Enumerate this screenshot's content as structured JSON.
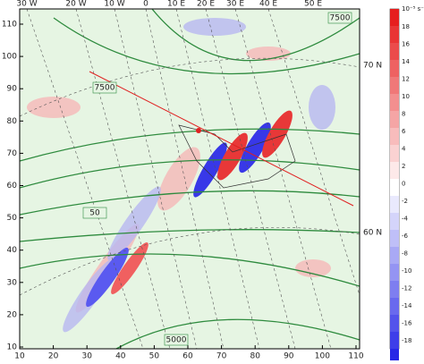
{
  "axes": {
    "left_ticks": [
      10,
      20,
      30,
      40,
      50,
      60,
      70,
      80,
      90,
      100,
      110
    ],
    "bottom_ticks": [
      10,
      20,
      30,
      40,
      50,
      60,
      70,
      80,
      90,
      100,
      110
    ]
  },
  "longitude_labels": [
    "30 W",
    "20 W",
    "10 W",
    "0",
    "10 E",
    "20 E",
    "30 E",
    "40 E",
    "50 E"
  ],
  "latitude_labels": [
    "70 N",
    "60 N"
  ],
  "contour_labels": [
    "7500",
    "7500",
    "50",
    "5000"
  ],
  "colorbar": {
    "unit": "10⁻⁵ s⁻¹",
    "ticks": [
      18,
      16,
      14,
      12,
      10,
      8,
      6,
      4,
      2,
      0,
      -2,
      -4,
      -6,
      -8,
      -10,
      -12,
      -14,
      -16,
      -18
    ]
  }
}
